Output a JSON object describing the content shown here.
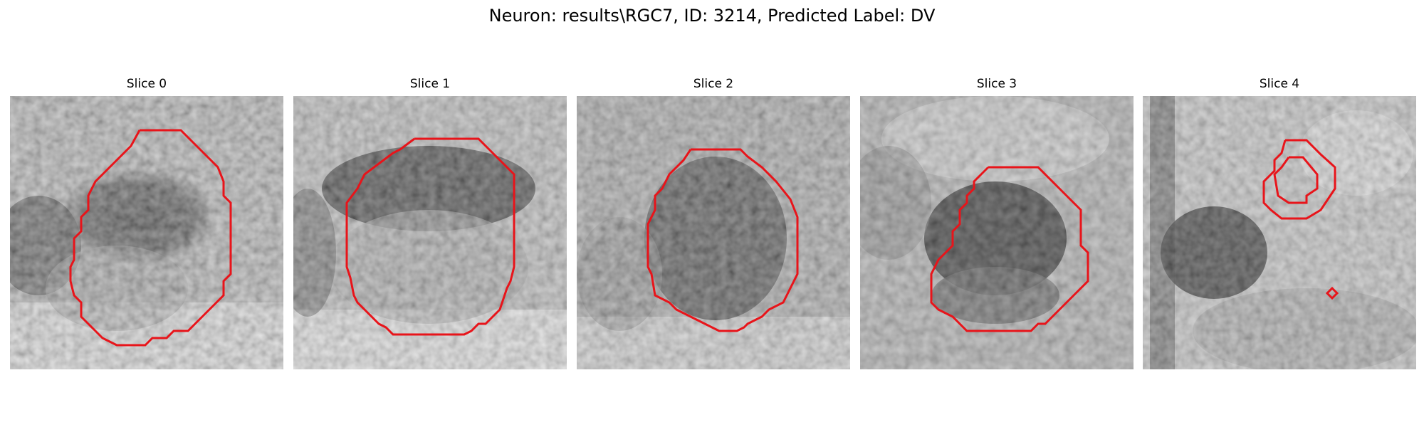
{
  "figure": {
    "title": "Neuron: results\\RGC7, ID: 3214, Predicted Label: DV"
  },
  "colors": {
    "contour": "#e8141a",
    "background": "#ffffff"
  },
  "panels": [
    {
      "title": "Slice 0"
    },
    {
      "title": "Slice 1"
    },
    {
      "title": "Slice 2"
    },
    {
      "title": "Slice 3"
    },
    {
      "title": "Slice 4"
    }
  ]
}
